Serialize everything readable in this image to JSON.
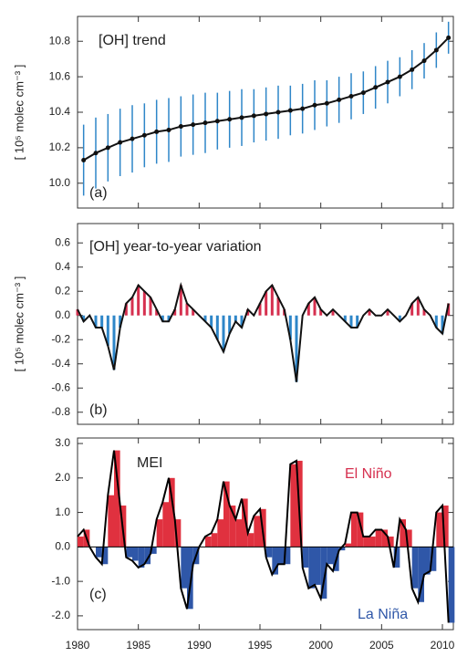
{
  "chart_data": [
    {
      "type": "errorbar",
      "title": "[OH] trend",
      "panel_label": "(a)",
      "y_label": "[ 10⁵ molec cm⁻³ ]",
      "x": [
        1980.5,
        1981.5,
        1982.5,
        1983.5,
        1984.5,
        1985.5,
        1986.5,
        1987.5,
        1988.5,
        1989.5,
        1990.5,
        1991.5,
        1992.5,
        1993.5,
        1994.5,
        1995.5,
        1996.5,
        1997.5,
        1998.5,
        1999.5,
        2000.5,
        2001.5,
        2002.5,
        2003.5,
        2004.5,
        2005.5,
        2006.5,
        2007.5,
        2008.5,
        2009.5,
        2010.5
      ],
      "values": [
        10.13,
        10.17,
        10.2,
        10.23,
        10.25,
        10.27,
        10.29,
        10.3,
        10.32,
        10.33,
        10.34,
        10.35,
        10.36,
        10.37,
        10.38,
        10.39,
        10.4,
        10.41,
        10.42,
        10.44,
        10.45,
        10.47,
        10.49,
        10.51,
        10.54,
        10.57,
        10.6,
        10.64,
        10.69,
        10.75,
        10.82
      ],
      "errors": [
        0.2,
        0.2,
        0.19,
        0.19,
        0.19,
        0.18,
        0.18,
        0.18,
        0.17,
        0.17,
        0.17,
        0.16,
        0.16,
        0.16,
        0.15,
        0.15,
        0.15,
        0.14,
        0.14,
        0.14,
        0.13,
        0.13,
        0.13,
        0.12,
        0.12,
        0.12,
        0.11,
        0.11,
        0.1,
        0.1,
        0.09
      ],
      "color": "#111111",
      "error_color": "#2e86c8",
      "xlim": [
        1980,
        2010.9
      ],
      "xticks": [
        1980,
        1985,
        1990,
        1995,
        2000,
        2005,
        2010
      ],
      "show_xtick_labels": false,
      "ylim": [
        9.86,
        10.94
      ],
      "yticks": [
        {
          "value": 10,
          "label": "10.0"
        },
        10.2,
        10.4,
        10.6,
        10.8
      ]
    },
    {
      "type": "stick",
      "title": "[OH] year-to-year variation",
      "panel_label": "(b)",
      "y_label": "[ 10⁵ molec cm⁻³ ]",
      "x": [
        1980,
        1980.5,
        1981,
        1981.5,
        1982,
        1982.5,
        1983,
        1983.5,
        1984,
        1984.5,
        1985,
        1985.5,
        1986,
        1986.5,
        1987,
        1987.5,
        1988,
        1988.5,
        1989,
        1989.5,
        1990,
        1990.5,
        1991,
        1991.5,
        1992,
        1992.5,
        1993,
        1993.5,
        1994,
        1994.5,
        1995,
        1995.5,
        1996,
        1996.5,
        1997,
        1997.5,
        1998,
        1998.5,
        1999,
        1999.5,
        2000,
        2000.5,
        2001,
        2001.5,
        2002,
        2002.5,
        2003,
        2003.5,
        2004,
        2004.5,
        2005,
        2005.5,
        2006,
        2006.5,
        2007,
        2007.5,
        2008,
        2008.5,
        2009,
        2009.5,
        2010,
        2010.5
      ],
      "values": [
        0.05,
        -0.05,
        0.0,
        -0.1,
        -0.1,
        -0.25,
        -0.45,
        -0.1,
        0.1,
        0.15,
        0.25,
        0.2,
        0.15,
        0.05,
        -0.05,
        -0.05,
        0.05,
        0.25,
        0.1,
        0.05,
        0.0,
        -0.05,
        -0.1,
        -0.2,
        -0.3,
        -0.15,
        -0.05,
        -0.1,
        0.05,
        0.0,
        0.1,
        0.2,
        0.25,
        0.15,
        0.05,
        -0.2,
        -0.55,
        0.0,
        0.1,
        0.15,
        0.05,
        0.0,
        0.05,
        0.0,
        -0.05,
        -0.1,
        -0.1,
        0.0,
        0.05,
        0.0,
        0.0,
        0.05,
        0.0,
        -0.05,
        0.0,
        0.1,
        0.15,
        0.05,
        0.0,
        -0.1,
        -0.15,
        0.1
      ],
      "color": "#111111",
      "positive_color": "#d6304f",
      "negative_color": "#2e86c8",
      "xlim": [
        1980,
        2010.9
      ],
      "xticks": [
        1980,
        1985,
        1990,
        1995,
        2000,
        2005,
        2010
      ],
      "show_xtick_labels": false,
      "ylim": [
        -0.9,
        0.76
      ],
      "yticks": [
        0.6,
        0.4,
        0.2,
        {
          "value": 0,
          "label": "0.0"
        },
        -0.2,
        -0.4,
        -0.6,
        -0.8
      ]
    },
    {
      "type": "area",
      "title": "MEI",
      "panel_label": "(c)",
      "positive_label": "El Niño",
      "negative_label": "La Niña",
      "x": [
        1980,
        1980.5,
        1981,
        1981.5,
        1982,
        1982.5,
        1983,
        1983.5,
        1984,
        1984.5,
        1985,
        1985.5,
        1986,
        1986.5,
        1987,
        1987.5,
        1988,
        1988.5,
        1989,
        1989.5,
        1990,
        1990.5,
        1991,
        1991.5,
        1992,
        1992.5,
        1993,
        1993.5,
        1994,
        1994.5,
        1995,
        1995.5,
        1996,
        1996.5,
        1997,
        1997.5,
        1998,
        1998.5,
        1999,
        1999.5,
        2000,
        2000.5,
        2001,
        2001.5,
        2002,
        2002.5,
        2003,
        2003.5,
        2004,
        2004.5,
        2005,
        2005.5,
        2006,
        2006.5,
        2007,
        2007.5,
        2008,
        2008.5,
        2009,
        2009.5,
        2010,
        2010.5
      ],
      "values": [
        0.3,
        0.5,
        0.0,
        -0.3,
        -0.5,
        1.5,
        2.8,
        1.2,
        -0.3,
        -0.4,
        -0.6,
        -0.5,
        -0.2,
        0.8,
        1.3,
        2.0,
        0.8,
        -1.2,
        -1.8,
        -0.5,
        0.0,
        0.3,
        0.4,
        0.8,
        1.9,
        1.2,
        0.8,
        1.4,
        0.4,
        0.9,
        1.1,
        -0.3,
        -0.8,
        -0.5,
        -0.5,
        2.4,
        2.5,
        -0.6,
        -1.2,
        -1.1,
        -1.5,
        -0.5,
        -0.7,
        -0.1,
        0.1,
        1.0,
        1.0,
        0.3,
        0.3,
        0.5,
        0.5,
        0.3,
        -0.6,
        0.8,
        0.5,
        -1.2,
        -1.6,
        -0.8,
        -0.7,
        1.0,
        1.2,
        -2.2
      ],
      "color": "#000000",
      "positive_color": "#e0313f",
      "negative_color": "#2f57a8",
      "xlim": [
        1980,
        2010.9
      ],
      "xticks": [
        1980,
        1985,
        1990,
        1995,
        2000,
        2005,
        2010
      ],
      "show_xtick_labels": true,
      "ylim": [
        -2.4,
        3.16
      ],
      "yticks": [
        {
          "value": 3,
          "label": "3.0"
        },
        {
          "value": 2,
          "label": "2.0"
        },
        {
          "value": 1,
          "label": "1.0"
        },
        {
          "value": 0,
          "label": "0.0"
        },
        {
          "value": -1,
          "label": "-1.0"
        },
        {
          "value": -2,
          "label": "-2.0"
        }
      ]
    }
  ]
}
